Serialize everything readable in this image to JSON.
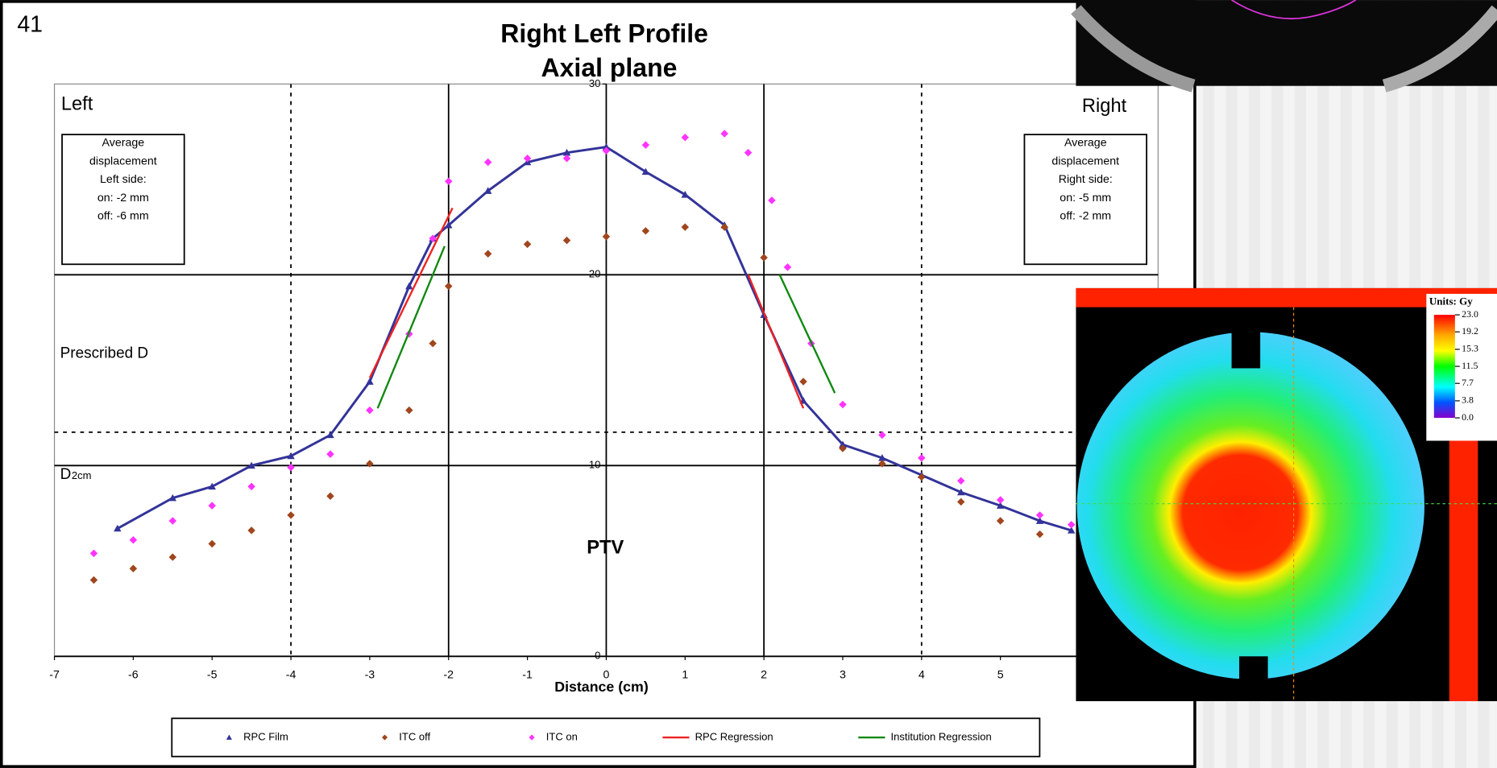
{
  "slide_number": "41",
  "chart_data": {
    "type": "scatter",
    "title": "Right Left Profile",
    "subtitle": "Axial plane",
    "x_label": "Distance (cm)",
    "xlim": [
      -7,
      7
    ],
    "ylim": [
      0,
      30
    ],
    "xticks": [
      -7,
      -6,
      -5,
      -4,
      -3,
      -2,
      -1,
      0,
      1,
      2,
      3,
      4,
      5
    ],
    "yticks": [
      0,
      10,
      20,
      30
    ],
    "hlines": [
      {
        "value": 20,
        "style": "solid"
      },
      {
        "value": 10,
        "style": "solid"
      },
      {
        "value": 11.75,
        "style": "dashed"
      }
    ],
    "vlines": [
      {
        "value": -2,
        "style": "solid"
      },
      {
        "value": 2,
        "style": "solid"
      },
      {
        "value": -4,
        "style": "dashed"
      },
      {
        "value": 4,
        "style": "dashed"
      }
    ],
    "left_label": "Left",
    "right_label": "Right",
    "left_box": [
      "Average",
      "displacement",
      "Left side:",
      "on: -2 mm",
      "off: -6 mm"
    ],
    "right_box": [
      "Average",
      "displacement",
      "Right side:",
      "on: -5 mm",
      "off: -2 mm"
    ],
    "prescribed_label": "Prescribed D",
    "d2cm_label": "D",
    "d2cm_sub": "2cm",
    "ptv_label": "PTV",
    "series": [
      {
        "name": "RPC Film",
        "color": "#333399",
        "marker": "triangle",
        "x": [
          -6.2,
          -5.5,
          -5,
          -4.5,
          -4,
          -3.5,
          -3,
          -2.5,
          -2.2,
          -2,
          -1.5,
          -1,
          -0.5,
          0,
          0.5,
          1,
          1.5,
          2,
          2.5,
          3,
          3.5,
          4,
          4.5,
          5,
          5.5,
          5.9
        ],
        "values": [
          6.7,
          8.3,
          8.9,
          10,
          10.5,
          11.6,
          14.4,
          19.4,
          21.9,
          22.6,
          24.4,
          25.9,
          26.4,
          26.7,
          25.4,
          24.2,
          22.6,
          17.9,
          13.4,
          11.1,
          10.4,
          9.5,
          8.6,
          7.9,
          7.1,
          6.6
        ]
      },
      {
        "name": "ITC off",
        "color": "#a0461e",
        "marker": "diamond",
        "x": [
          -6.5,
          -6,
          -5.5,
          -5,
          -4.5,
          -4,
          -3.5,
          -3,
          -2.5,
          -2.2,
          -2,
          -1.5,
          -1,
          -0.5,
          0,
          0.5,
          1,
          1.5,
          2,
          2.5,
          3,
          3.5,
          4,
          4.5,
          5,
          5.5
        ],
        "values": [
          4.0,
          4.6,
          5.2,
          5.9,
          6.6,
          7.4,
          8.4,
          10.1,
          12.9,
          16.4,
          19.4,
          21.1,
          21.6,
          21.8,
          22.0,
          22.3,
          22.5,
          22.5,
          20.9,
          14.4,
          10.9,
          10.1,
          9.4,
          8.1,
          7.1,
          6.4
        ]
      },
      {
        "name": "ITC on",
        "color": "#ff33ff",
        "marker": "diamond",
        "x": [
          -6.5,
          -6,
          -5.5,
          -5,
          -4.5,
          -4,
          -3.5,
          -3,
          -2.5,
          -2.2,
          -2,
          -1.5,
          -1,
          -0.5,
          0,
          0.5,
          1,
          1.5,
          1.8,
          2.1,
          2.3,
          2.6,
          3,
          3.5,
          4,
          4.5,
          5,
          5.5,
          5.9
        ],
        "values": [
          5.4,
          6.1,
          7.1,
          7.9,
          8.9,
          9.9,
          10.6,
          12.9,
          16.9,
          21.9,
          24.9,
          25.9,
          26.1,
          26.1,
          26.5,
          26.8,
          27.2,
          27.4,
          26.4,
          23.9,
          20.4,
          16.4,
          13.2,
          11.6,
          10.4,
          9.2,
          8.2,
          7.4,
          6.9
        ]
      },
      {
        "name": "RPC Regression",
        "color": "#ee2222",
        "marker": "line",
        "x": [
          -3.0,
          -1.95,
          null,
          1.8,
          2.5
        ],
        "values": [
          14.6,
          23.5,
          null,
          20,
          13
        ]
      },
      {
        "name": "Institution Regression",
        "color": "#118811",
        "marker": "line",
        "x": [
          -2.9,
          -2.05,
          null,
          2.2,
          2.9
        ],
        "values": [
          13,
          21.5,
          null,
          20,
          13.8
        ]
      }
    ]
  },
  "dose_image": {
    "units_label": "Units: Gy",
    "scale": [
      {
        "value": 23,
        "label": "23.0"
      },
      {
        "value": 19.2,
        "label": "19.2"
      },
      {
        "value": 15.3,
        "label": "15.3"
      },
      {
        "value": 11.5,
        "label": "11.5"
      },
      {
        "value": 7.7,
        "label": "7.7"
      },
      {
        "value": 3.8,
        "label": "3.8"
      },
      {
        "value": 0,
        "label": "0.0"
      }
    ]
  }
}
